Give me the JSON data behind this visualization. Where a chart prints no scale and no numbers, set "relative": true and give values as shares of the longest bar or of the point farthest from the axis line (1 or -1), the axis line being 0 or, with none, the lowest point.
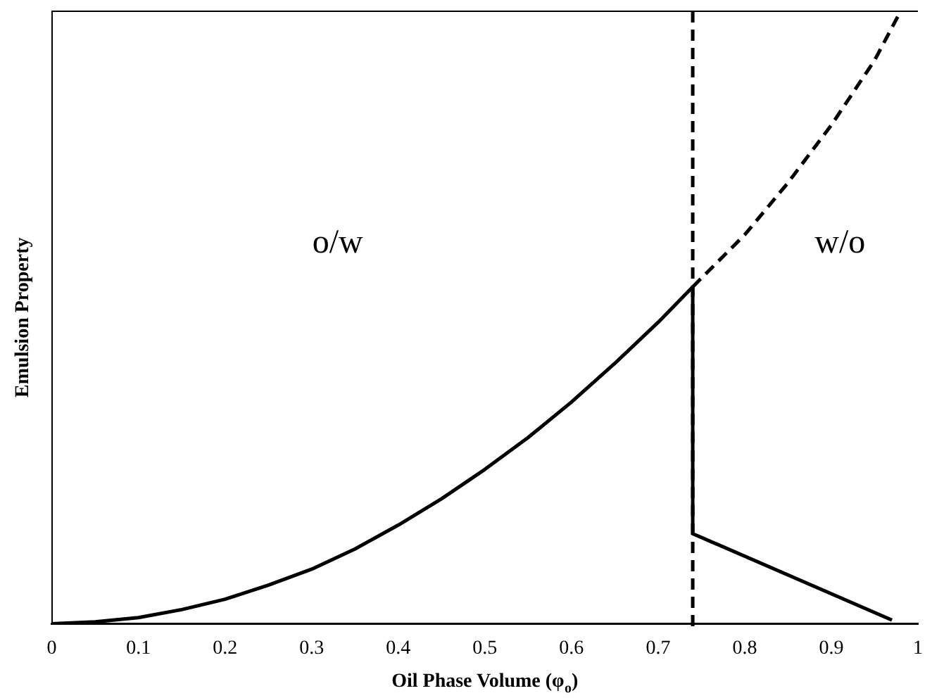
{
  "chart_data": {
    "type": "line",
    "xlabel": "Oil Phase Volume (φ$_{o}$)",
    "ylabel": "Emulsion Property",
    "relative": true,
    "xlim": [
      0,
      1
    ],
    "xticks": [
      0,
      0.1,
      0.2,
      0.3,
      0.4,
      0.5,
      0.6,
      0.7,
      0.8,
      0.9,
      1
    ],
    "grid": false,
    "legend": false,
    "marker": "none",
    "series": [
      {
        "color": "#000000",
        "line_style": "solid",
        "x": [
          0,
          0.05,
          0.1,
          0.15,
          0.2,
          0.25,
          0.3,
          0.35,
          0.4,
          0.45,
          0.5,
          0.55,
          0.6,
          0.65,
          0.7,
          0.74,
          0.74,
          0.97
        ],
        "values": [
          0,
          0.003,
          0.01,
          0.023,
          0.04,
          0.063,
          0.089,
          0.122,
          0.161,
          0.204,
          0.252,
          0.304,
          0.362,
          0.425,
          0.492,
          0.55,
          0.147,
          0.006
        ]
      },
      {
        "color": "#000000",
        "line_style": "dashed",
        "x": [
          0.74,
          0.8,
          0.85,
          0.9,
          0.95,
          0.98
        ],
        "values": [
          0.55,
          0.635,
          0.72,
          0.814,
          0.92,
          1
        ]
      }
    ],
    "ref_lines": [
      {
        "axis": "x",
        "value": 0.74,
        "color": "#000000",
        "line_style": "dashed"
      }
    ],
    "annotations": [
      "o/w",
      "w/o"
    ]
  }
}
